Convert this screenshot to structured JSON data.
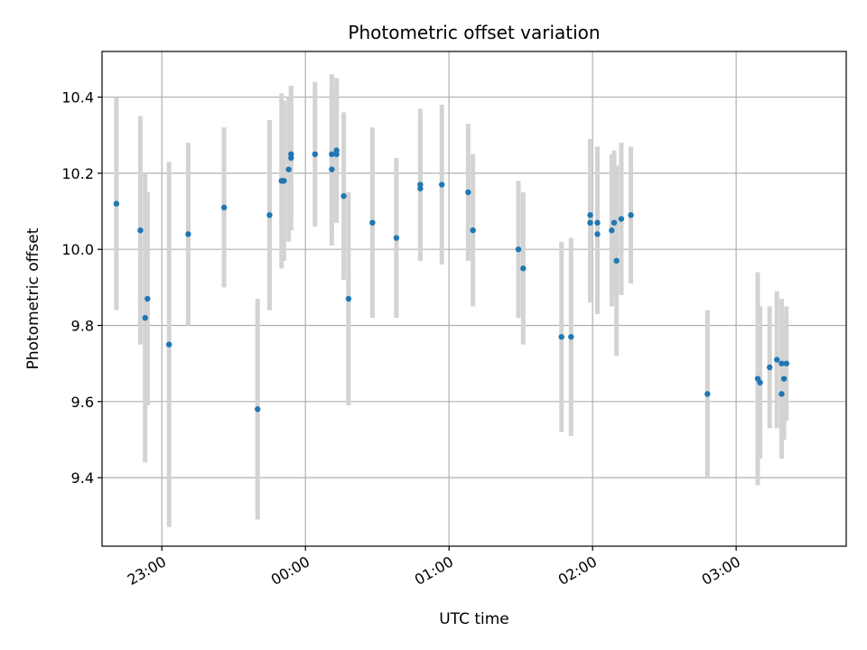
{
  "chart_data": {
    "type": "scatter",
    "title": "Photometric offset variation",
    "xlabel": "UTC time",
    "ylabel": "Photometric offset",
    "x_ticks": [
      "23:00",
      "00:00",
      "01:00",
      "02:00",
      "03:00"
    ],
    "y_ticks": [
      "9.4",
      "9.6",
      "9.8",
      "10.0",
      "10.2",
      "10.4"
    ],
    "y_tick_values": [
      9.4,
      9.6,
      9.8,
      10.0,
      10.2,
      10.4
    ],
    "xlim": [
      "22:35",
      "03:46"
    ],
    "ylim": [
      9.22,
      10.52
    ],
    "grid": true,
    "colors": {
      "point": "#1f77b4",
      "errorbar": "#d3d3d3",
      "grid": "#b0b0b0"
    },
    "series": [
      {
        "x": [
          "22:41",
          "22:51",
          "22:53",
          "22:54",
          "23:03",
          "23:11",
          "23:26",
          "23:40",
          "23:45",
          "23:50",
          "23:51",
          "23:53",
          "23:54",
          "23:54",
          "24:04",
          "24:11",
          "24:11",
          "24:13",
          "24:13",
          "24:16",
          "24:18",
          "24:28",
          "24:38",
          "24:48",
          "24:48",
          "24:57",
          "25:08",
          "25:10",
          "25:29",
          "25:31",
          "25:47",
          "25:51",
          "25:59",
          "25:59",
          "26:02",
          "26:02",
          "26:08",
          "26:09",
          "26:10",
          "26:12",
          "26:16",
          "26:48",
          "27:09",
          "27:10",
          "27:14",
          "27:17",
          "27:19",
          "27:19",
          "27:20",
          "27:21"
        ],
        "y": [
          10.12,
          10.05,
          9.82,
          9.87,
          9.75,
          10.04,
          10.11,
          9.58,
          10.09,
          10.18,
          10.18,
          10.21,
          10.24,
          10.25,
          10.25,
          10.21,
          10.25,
          10.25,
          10.26,
          10.14,
          9.87,
          10.07,
          10.03,
          10.17,
          10.16,
          10.17,
          10.15,
          10.05,
          10.0,
          9.95,
          9.77,
          9.77,
          10.07,
          10.09,
          10.07,
          10.04,
          10.05,
          10.07,
          9.97,
          10.08,
          10.09,
          9.62,
          9.66,
          9.65,
          9.69,
          9.71,
          9.7,
          9.62,
          9.66,
          9.7
        ],
        "err": [
          0.28,
          0.3,
          0.38,
          0.28,
          0.48,
          0.24,
          0.21,
          0.29,
          0.25,
          0.23,
          0.21,
          0.19,
          0.19,
          0.18,
          0.19,
          0.2,
          0.21,
          0.18,
          0.19,
          0.22,
          0.28,
          0.25,
          0.21,
          0.2,
          0.19,
          0.21,
          0.18,
          0.2,
          0.18,
          0.2,
          0.25,
          0.26,
          0.21,
          0.2,
          0.2,
          0.21,
          0.2,
          0.19,
          0.25,
          0.2,
          0.18,
          0.22,
          0.28,
          0.2,
          0.16,
          0.18,
          0.17,
          0.17,
          0.16,
          0.15
        ]
      }
    ]
  }
}
